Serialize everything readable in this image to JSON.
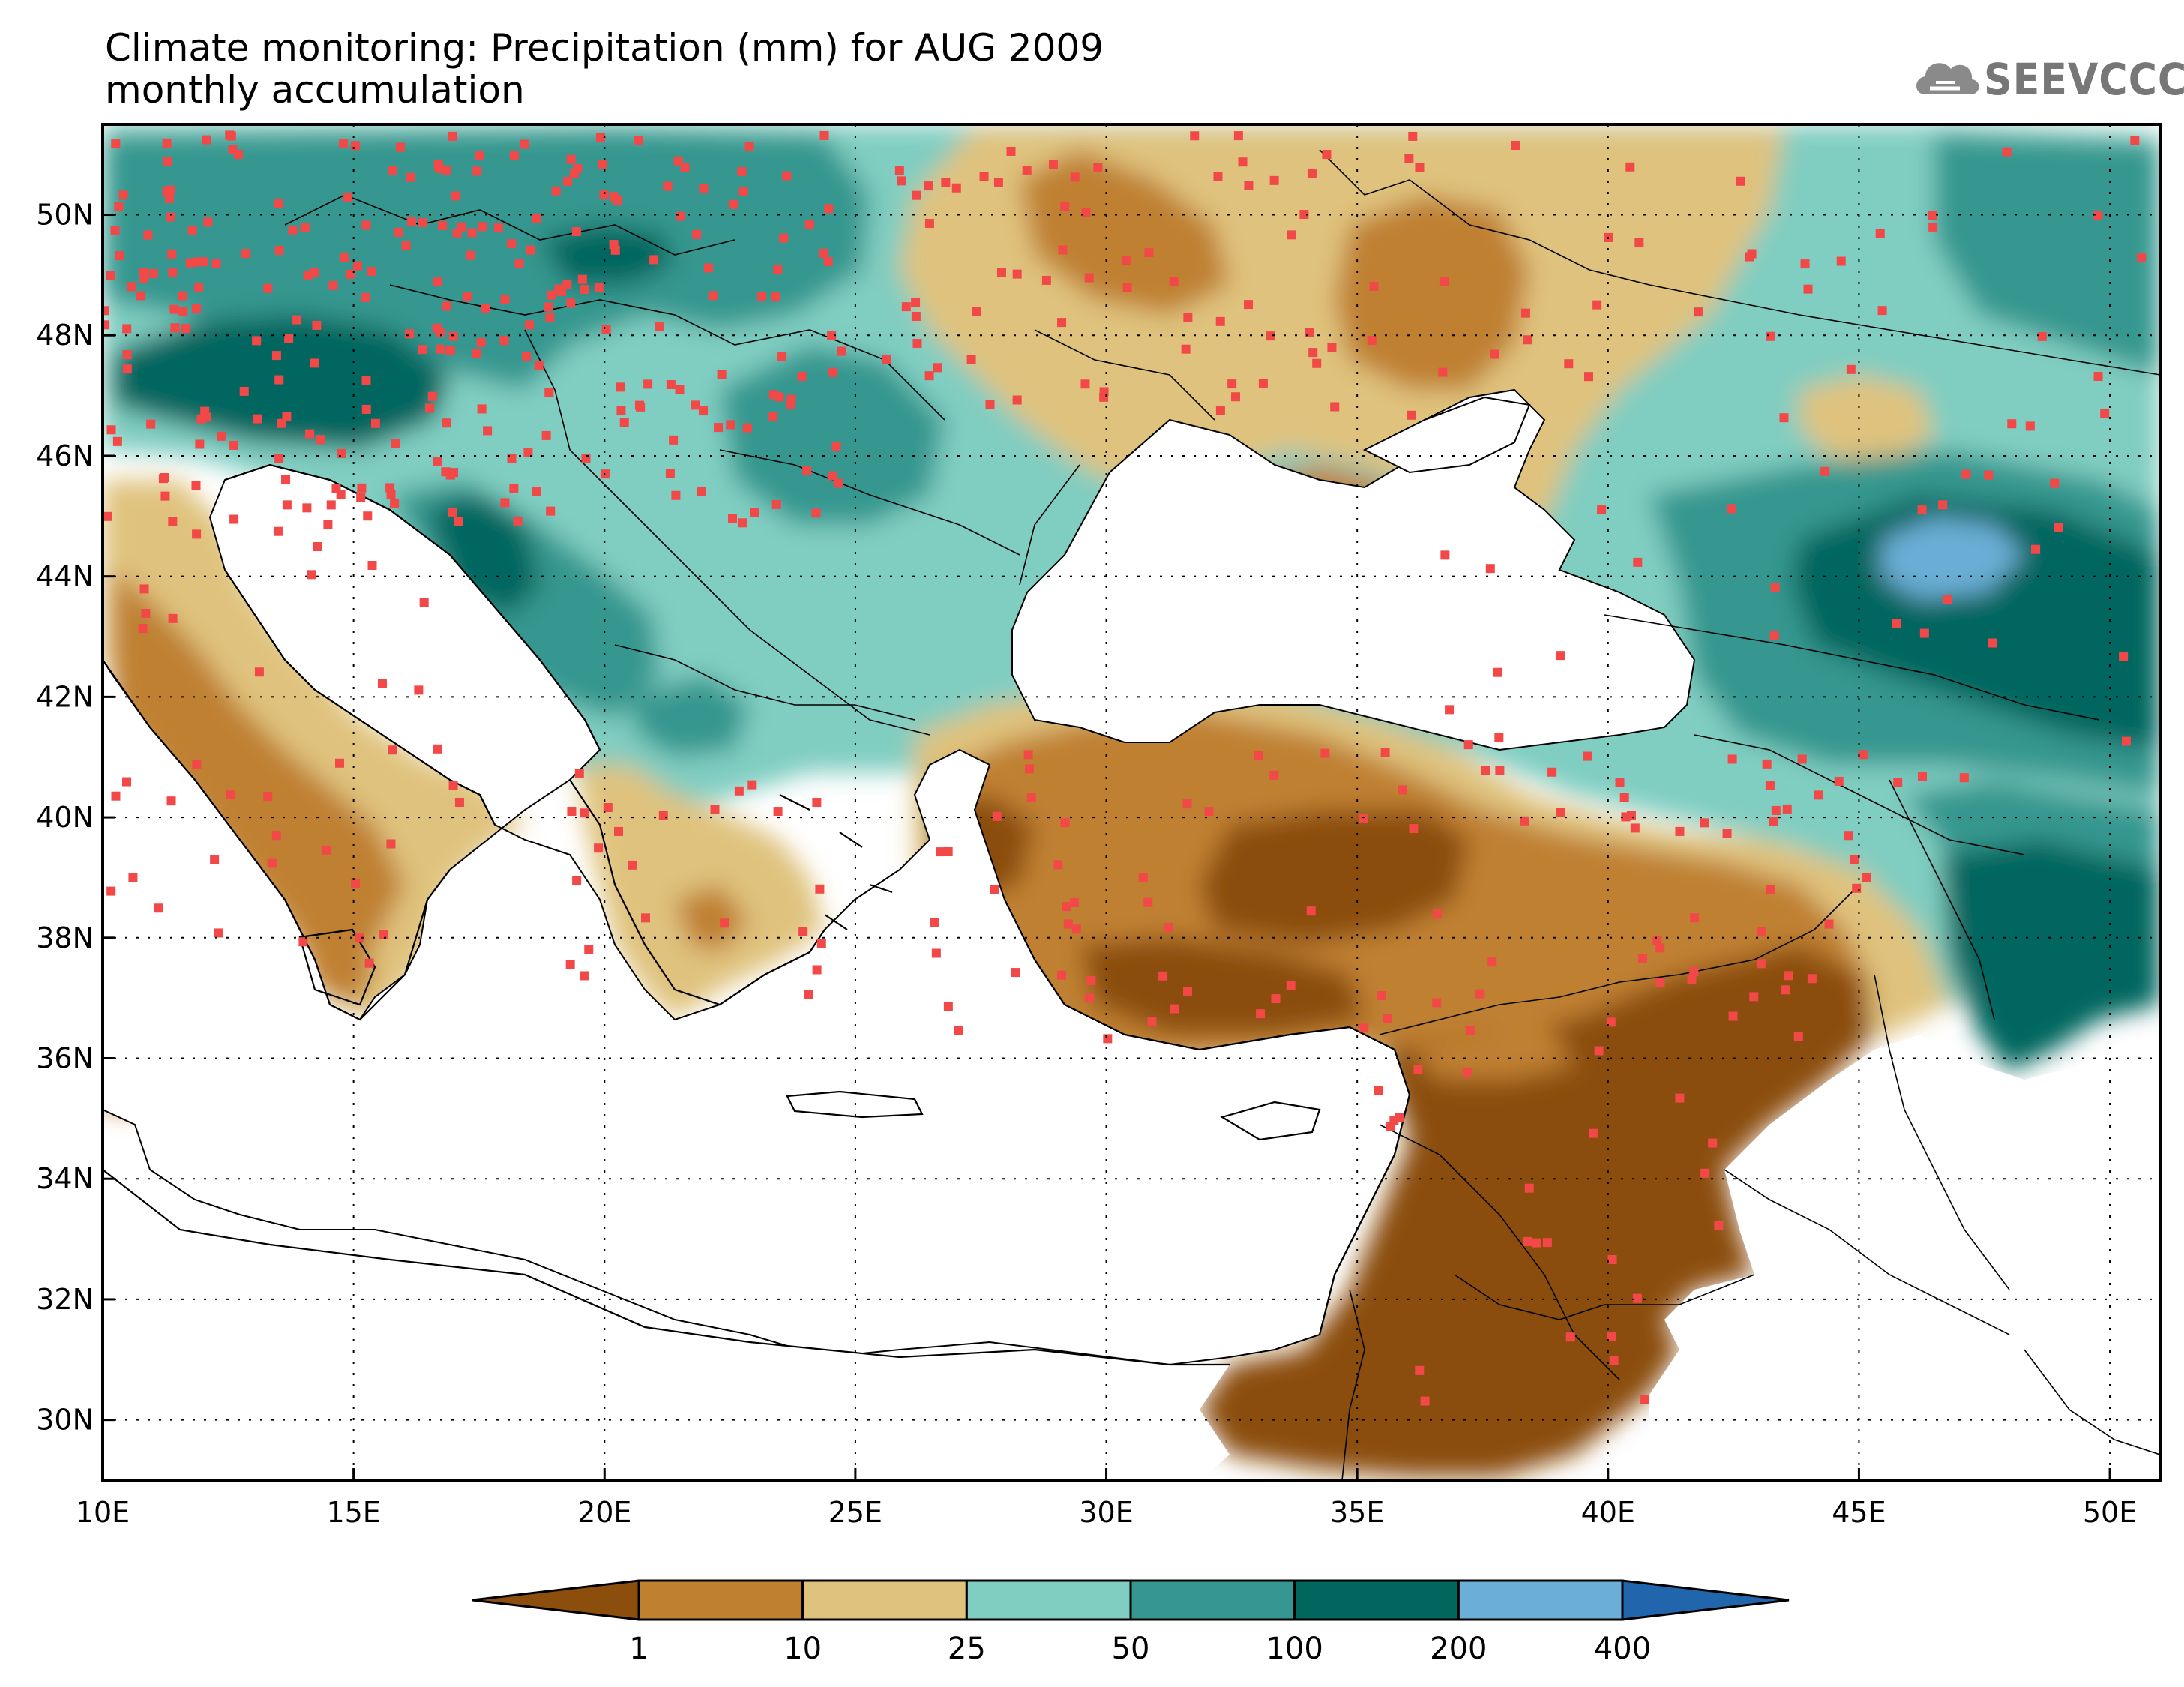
{
  "title": {
    "line1": "Climate monitoring: Precipitation (mm) for AUG 2009",
    "line2": "monthly accumulation"
  },
  "logo": {
    "text": "SEEVCCC",
    "icon": "cloud-icon"
  },
  "axes": {
    "lon_min": 10,
    "lon_max": 51,
    "lat_min": 29,
    "lat_max": 51.5,
    "x_ticks": [
      {
        "value": 10,
        "label": "10E"
      },
      {
        "value": 15,
        "label": "15E"
      },
      {
        "value": 20,
        "label": "20E"
      },
      {
        "value": 25,
        "label": "25E"
      },
      {
        "value": 30,
        "label": "30E"
      },
      {
        "value": 35,
        "label": "35E"
      },
      {
        "value": 40,
        "label": "40E"
      },
      {
        "value": 45,
        "label": "45E"
      },
      {
        "value": 50,
        "label": "50E"
      }
    ],
    "y_ticks": [
      {
        "value": 30,
        "label": "30N"
      },
      {
        "value": 32,
        "label": "32N"
      },
      {
        "value": 34,
        "label": "34N"
      },
      {
        "value": 36,
        "label": "36N"
      },
      {
        "value": 38,
        "label": "38N"
      },
      {
        "value": 40,
        "label": "40N"
      },
      {
        "value": 42,
        "label": "42N"
      },
      {
        "value": 44,
        "label": "44N"
      },
      {
        "value": 46,
        "label": "46N"
      },
      {
        "value": 48,
        "label": "48N"
      },
      {
        "value": 50,
        "label": "50N"
      }
    ],
    "grid": true
  },
  "colorbar": {
    "levels": [
      "1",
      "10",
      "25",
      "50",
      "100",
      "200",
      "400"
    ],
    "colors": [
      "#8b4e0c",
      "#bf8030",
      "#dfc27d",
      "#80cdc1",
      "#35978f",
      "#01665e",
      "#6baed6",
      "#2166ac"
    ]
  },
  "colors": {
    "ocean": "#ffffff",
    "station": "#f24848",
    "coast": "#000000"
  }
}
